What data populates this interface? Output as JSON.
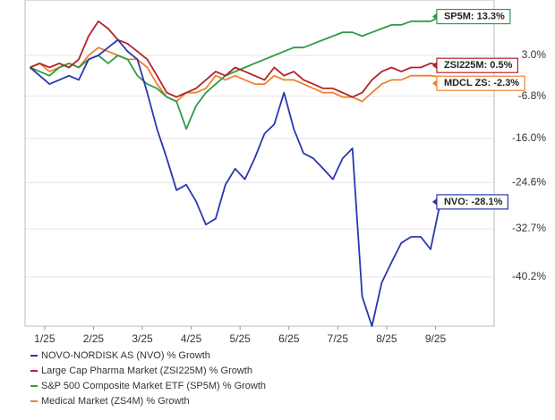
{
  "chart_data": {
    "type": "line",
    "scale": "log-growth",
    "grid": true,
    "x": [
      0.7,
      0.9,
      1.1,
      1.3,
      1.5,
      1.7,
      1.9,
      2.1,
      2.3,
      2.5,
      2.7,
      2.9,
      3.1,
      3.3,
      3.5,
      3.7,
      3.9,
      4.1,
      4.3,
      4.5,
      4.7,
      4.9,
      5.1,
      5.3,
      5.5,
      5.7,
      5.9,
      6.1,
      6.3,
      6.5,
      6.7,
      6.9,
      7.1,
      7.3,
      7.5,
      7.7,
      7.9,
      8.1,
      8.3,
      8.5,
      8.7,
      8.9,
      9.1
    ],
    "xlim": [
      0.6,
      10.2
    ],
    "xticks": [
      {
        "value": 1,
        "label": "1/25"
      },
      {
        "value": 2,
        "label": "2/25"
      },
      {
        "value": 3,
        "label": "3/25"
      },
      {
        "value": 4,
        "label": "4/25"
      },
      {
        "value": 5,
        "label": "5/25"
      },
      {
        "value": 6,
        "label": "6/25"
      },
      {
        "value": 7,
        "label": "7/25"
      },
      {
        "value": 8,
        "label": "8/25"
      },
      {
        "value": 9,
        "label": "9/25"
      }
    ],
    "ylim": [
      -47,
      18
    ],
    "yticks": [
      {
        "value": 3.0,
        "label": "3.0%"
      },
      {
        "value": -6.8,
        "label": "-6.8%"
      },
      {
        "value": -16.0,
        "label": "-16.0%"
      },
      {
        "value": -24.6,
        "label": "-24.6%"
      },
      {
        "value": -32.7,
        "label": "-32.7%"
      },
      {
        "value": -40.2,
        "label": "-40.2%"
      }
    ],
    "series": [
      {
        "name": "NOVO-NORDISK AS (NVO) % Growth",
        "color": "#2a37b0",
        "end_label": "NVO: -28.1%",
        "values": [
          0,
          -2,
          -4,
          -3,
          -2,
          -3,
          2,
          3,
          5,
          7,
          4,
          2,
          -6,
          -14,
          -20,
          -26,
          -25,
          -28,
          -32,
          -31,
          -25,
          -22,
          -24,
          -20,
          -15,
          -13,
          -6,
          -14,
          -19,
          -20,
          -22,
          -24,
          -20,
          -18,
          -43,
          -47,
          -41,
          -38,
          -35,
          -34,
          -34,
          -36,
          -28.1
        ]
      },
      {
        "name": "Large Cap Pharma Market (ZSI225M) % Growth",
        "color": "#b3232b",
        "end_label": "ZSI225M: 0.5%",
        "values": [
          0,
          1,
          0,
          1,
          0,
          2,
          8,
          12,
          10,
          7,
          6,
          4,
          2,
          -2,
          -6,
          -7,
          -6,
          -5,
          -3,
          -1,
          -2,
          0,
          -1,
          -2,
          -3,
          0,
          -2,
          -1,
          -3,
          -4,
          -5,
          -5,
          -6,
          -7,
          -6,
          -3,
          -1,
          0,
          -1,
          0,
          0,
          1,
          0.5
        ]
      },
      {
        "name": "S&P 500 Composite Market ETF (SP5M) % Growth",
        "color": "#2e9c46",
        "end_label": "SP5M: 13.3%",
        "values": [
          0,
          -1,
          -2,
          0,
          1,
          0,
          2,
          3,
          1,
          3,
          2,
          -2,
          -4,
          -5,
          -7,
          -8,
          -14,
          -9,
          -6,
          -4,
          -2,
          -1,
          0,
          1,
          2,
          3,
          4,
          5,
          5,
          6,
          7,
          8,
          9,
          9,
          8,
          9,
          10,
          11,
          11,
          12,
          12,
          12,
          13.3
        ]
      },
      {
        "name": "Medical Market (ZS4M) % Growth",
        "color": "#f2802d",
        "end_label": "MDCL ZS: -2.3%",
        "values": [
          0,
          1,
          -1,
          0,
          1,
          0,
          3,
          5,
          4,
          3,
          2,
          2,
          0,
          -4,
          -7,
          -8,
          -6,
          -6,
          -5,
          -2,
          -3,
          -2,
          -3,
          -4,
          -4,
          -2,
          -3,
          -3,
          -4,
          -5,
          -6,
          -6,
          -7,
          -7,
          -8,
          -6,
          -4,
          -3,
          -3,
          -2,
          -2,
          -2,
          -2.3
        ]
      }
    ]
  }
}
